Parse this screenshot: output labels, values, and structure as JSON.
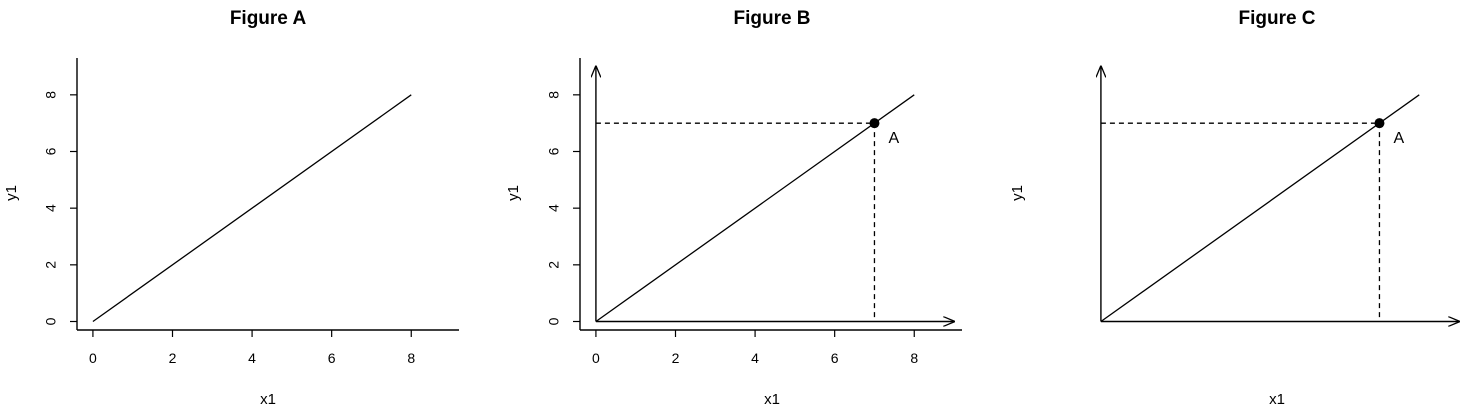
{
  "chart_data": [
    {
      "type": "line",
      "title": "Figure A",
      "xlabel": "x1",
      "ylabel": "y1",
      "xlim": [
        -0.4,
        9.2
      ],
      "ylim": [
        -0.3,
        9.3
      ],
      "axes_style": "box-axes",
      "x_ticks": [
        0,
        2,
        4,
        6,
        8
      ],
      "y_ticks": [
        0,
        2,
        4,
        6,
        8
      ],
      "series": [
        {
          "x": [
            0,
            8
          ],
          "y": [
            0,
            8
          ]
        }
      ]
    },
    {
      "type": "line",
      "title": "Figure B",
      "xlabel": "x1",
      "ylabel": "y1",
      "xlim": [
        -0.4,
        9.2
      ],
      "ylim": [
        -0.3,
        9.3
      ],
      "axes_style": "box-axes-with-arrows",
      "x_ticks": [
        0,
        2,
        4,
        6,
        8
      ],
      "y_ticks": [
        0,
        2,
        4,
        6,
        8
      ],
      "arrow_ends": {
        "x": 9,
        "y": 9
      },
      "series": [
        {
          "x": [
            0,
            8
          ],
          "y": [
            0,
            8
          ]
        }
      ],
      "point": {
        "x": 7,
        "y": 7,
        "label": "A"
      },
      "dashed_guides": true
    },
    {
      "type": "line",
      "title": "Figure C",
      "xlabel": "x1",
      "ylabel": "y1",
      "xlim": [
        -0.4,
        9.2
      ],
      "ylim": [
        -0.3,
        9.3
      ],
      "axes_style": "arrows-only",
      "x_ticks": [],
      "y_ticks": [],
      "arrow_ends": {
        "x": 9,
        "y": 9
      },
      "series": [
        {
          "x": [
            0,
            8
          ],
          "y": [
            0,
            8
          ]
        }
      ],
      "point": {
        "x": 7,
        "y": 7,
        "label": "A"
      },
      "dashed_guides": true
    }
  ]
}
